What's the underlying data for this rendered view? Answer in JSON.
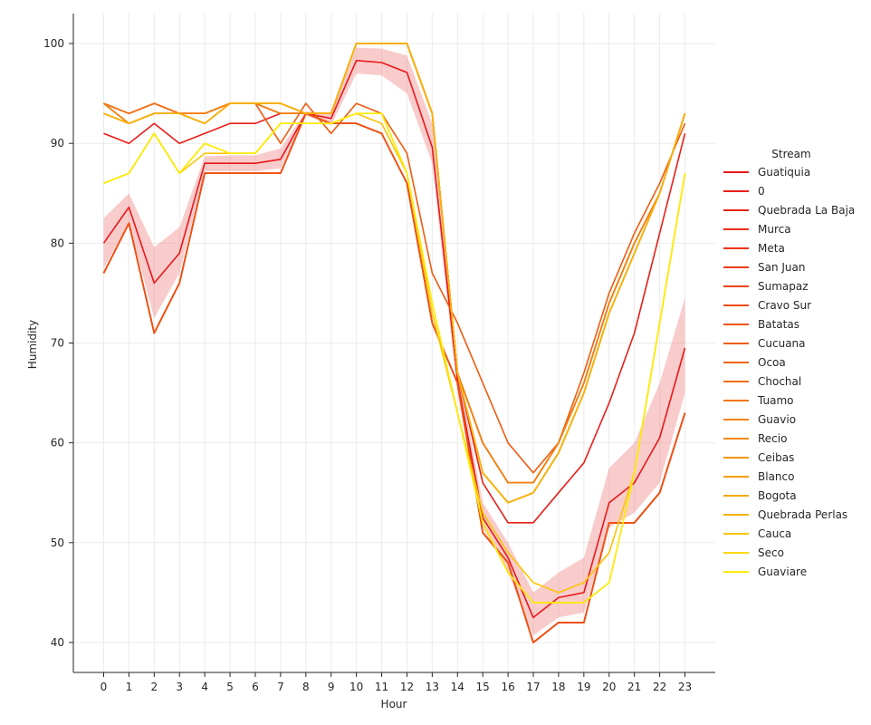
{
  "chart_data": {
    "type": "line",
    "title": "",
    "xlabel": "Hour",
    "ylabel": "Humidity",
    "x": [
      0,
      1,
      2,
      3,
      4,
      5,
      6,
      7,
      8,
      9,
      10,
      11,
      12,
      13,
      14,
      15,
      16,
      17,
      18,
      19,
      20,
      21,
      22,
      23
    ],
    "xlim": [
      -1.2,
      24.2
    ],
    "ylim": [
      37,
      103
    ],
    "yticks": [
      40,
      50,
      60,
      70,
      80,
      90,
      100
    ],
    "grid": true,
    "legend": {
      "title": "Stream",
      "placement": "right"
    },
    "band": {
      "color": "#f08080",
      "lower": [
        77.5,
        82.0,
        72.5,
        77.0,
        87.2,
        87.2,
        87.2,
        87.5,
        92.8,
        91.8,
        97.0,
        96.8,
        95.0,
        88.0,
        65.0,
        51.5,
        47.0,
        40.7,
        42.5,
        43.0,
        51.5,
        53.0,
        56.0,
        65.0
      ],
      "upper": [
        82.5,
        85.0,
        79.6,
        81.6,
        88.7,
        88.8,
        88.8,
        89.5,
        93.2,
        93.0,
        99.6,
        99.5,
        98.8,
        92.0,
        67.5,
        54.0,
        50.0,
        45.0,
        47.0,
        48.5,
        57.5,
        60.0,
        66.0,
        74.5
      ]
    },
    "series": [
      {
        "name": "Guatiquia",
        "color": "#e8181b",
        "values": [
          80,
          83.6,
          76,
          79,
          88,
          88,
          88,
          88.4,
          93,
          92.5,
          98.3,
          98.1,
          97.1,
          89.6,
          66.3,
          52.5,
          48.5,
          42.5,
          44.5,
          45,
          54,
          56,
          60.5,
          69.5
        ]
      },
      {
        "name": "0",
        "color": "#e81f1a",
        "values": [
          91,
          90,
          92,
          90,
          91,
          92,
          92,
          93,
          93,
          93,
          100,
          100,
          100,
          93,
          67,
          56,
          52,
          52,
          55,
          58,
          64,
          71,
          81,
          91
        ]
      },
      {
        "name": "Quebrada La Baja",
        "color": "#e92619",
        "values": [
          77,
          82,
          71,
          76,
          87,
          87,
          87,
          87,
          93,
          92,
          92,
          91,
          86,
          72,
          66,
          51,
          48,
          40,
          42,
          42,
          52,
          52,
          55,
          63
        ]
      },
      {
        "name": "Murca",
        "color": "#ea2d18",
        "values": [
          77,
          82,
          71,
          76,
          87,
          87,
          87,
          87,
          93,
          92,
          92,
          91,
          86,
          72,
          66,
          51,
          48,
          40,
          42,
          42,
          52,
          52,
          55,
          63
        ]
      },
      {
        "name": "Meta",
        "color": "#eb3417",
        "values": [
          77,
          82,
          71,
          76,
          87,
          87,
          87,
          87,
          93,
          92,
          92,
          91,
          86,
          72,
          66,
          51,
          48,
          40,
          42,
          42,
          52,
          52,
          55,
          63
        ]
      },
      {
        "name": "San Juan",
        "color": "#ec3b16",
        "values": [
          77,
          82,
          71,
          76,
          87,
          87,
          87,
          87,
          93,
          92,
          92,
          91,
          86,
          72,
          66,
          51,
          48,
          40,
          42,
          42,
          52,
          52,
          55,
          63
        ]
      },
      {
        "name": "Sumapaz",
        "color": "#ed4315",
        "values": [
          77,
          82,
          71,
          76,
          87,
          87,
          87,
          87,
          93,
          92,
          92,
          91,
          86,
          72,
          66,
          51,
          48,
          40,
          42,
          42,
          52,
          52,
          55,
          63
        ]
      },
      {
        "name": "Cravo Sur",
        "color": "#ee4b14",
        "values": [
          77,
          82,
          71,
          76,
          87,
          87,
          87,
          87,
          93,
          92,
          92,
          91,
          86,
          72,
          66,
          51,
          48,
          40,
          42,
          42,
          52,
          52,
          55,
          63
        ]
      },
      {
        "name": "Batatas",
        "color": "#ef5313",
        "values": [
          77,
          82,
          71,
          76,
          87,
          87,
          87,
          87,
          93,
          92,
          92,
          91,
          86,
          72,
          66,
          51,
          48,
          40,
          42,
          42,
          52,
          52,
          55,
          63
        ]
      },
      {
        "name": "Cucuana",
        "color": "#ef5c12",
        "values": [
          94,
          93,
          94,
          93,
          93,
          94,
          94,
          90,
          94,
          91,
          94,
          93,
          89,
          77,
          72,
          66,
          60,
          57,
          60,
          67,
          75,
          81,
          86,
          92
        ]
      },
      {
        "name": "Ocoa",
        "color": "#f06511",
        "values": [
          94,
          93,
          94,
          93,
          93,
          94,
          94,
          93,
          93,
          93,
          100,
          100,
          100,
          93,
          67,
          60,
          56,
          56,
          60,
          66,
          74,
          80,
          85,
          93
        ]
      },
      {
        "name": "Chochal",
        "color": "#f16e10",
        "values": [
          94,
          93,
          94,
          93,
          93,
          94,
          94,
          93,
          93,
          93,
          100,
          100,
          100,
          93,
          67,
          60,
          56,
          56,
          60,
          66,
          74,
          80,
          85,
          93
        ]
      },
      {
        "name": "Tuamo",
        "color": "#f2770f",
        "values": [
          94,
          92,
          93,
          93,
          93,
          94,
          94,
          93,
          93,
          93,
          100,
          100,
          100,
          93,
          67,
          60,
          56,
          56,
          60,
          66,
          74,
          80,
          85,
          93
        ]
      },
      {
        "name": "Guavio",
        "color": "#f3800e",
        "values": [
          94,
          92,
          93,
          93,
          93,
          94,
          94,
          93,
          93,
          93,
          100,
          100,
          100,
          93,
          67,
          60,
          56,
          56,
          60,
          66,
          74,
          80,
          85,
          93
        ]
      },
      {
        "name": "Recio",
        "color": "#f48a0d",
        "values": [
          93,
          92,
          93,
          93,
          92,
          94,
          94,
          94,
          93,
          93,
          100,
          100,
          100,
          93,
          67,
          57,
          54,
          55,
          59,
          65,
          73,
          79,
          85,
          93
        ]
      },
      {
        "name": "Ceibas",
        "color": "#f5940c",
        "values": [
          93,
          92,
          93,
          93,
          92,
          94,
          94,
          94,
          93,
          93,
          100,
          100,
          100,
          93,
          67,
          57,
          54,
          55,
          59,
          65,
          73,
          79,
          85,
          93
        ]
      },
      {
        "name": "Blanco",
        "color": "#f69e0b",
        "values": [
          93,
          92,
          93,
          93,
          92,
          94,
          94,
          94,
          93,
          93,
          100,
          100,
          100,
          93,
          67,
          57,
          54,
          55,
          59,
          65,
          73,
          79,
          85,
          93
        ]
      },
      {
        "name": "Bogota",
        "color": "#f7a80a",
        "values": [
          93,
          92,
          93,
          93,
          92,
          94,
          94,
          94,
          93,
          93,
          100,
          100,
          100,
          93,
          67,
          57,
          54,
          55,
          59,
          65,
          73,
          79,
          85,
          93
        ]
      },
      {
        "name": "Quebrada Perlas",
        "color": "#f8b209",
        "values": [
          93,
          92,
          93,
          93,
          92,
          94,
          94,
          94,
          93,
          93,
          100,
          100,
          100,
          93,
          67,
          57,
          54,
          55,
          59,
          65,
          73,
          79,
          85,
          93
        ]
      },
      {
        "name": "Cauca",
        "color": "#f9c508",
        "values": [
          86,
          87,
          91,
          87,
          89,
          89,
          89,
          92,
          92,
          92,
          93,
          92,
          87,
          73,
          63,
          53,
          49,
          46,
          45,
          46,
          49,
          57,
          72,
          87
        ]
      },
      {
        "name": "Seco",
        "color": "#fbd907",
        "values": [
          86,
          87,
          91,
          87,
          90,
          89,
          89,
          92,
          92,
          92,
          93,
          93,
          87,
          74,
          63,
          52,
          47,
          44,
          44,
          44,
          46,
          57,
          72,
          87
        ]
      },
      {
        "name": "Guaviare",
        "color": "#fdec06",
        "values": [
          86,
          87,
          91,
          87,
          90,
          89,
          89,
          92,
          92,
          92,
          93,
          93,
          87,
          74,
          63,
          52,
          47,
          44,
          44,
          44,
          46,
          57,
          72,
          87
        ]
      }
    ]
  }
}
